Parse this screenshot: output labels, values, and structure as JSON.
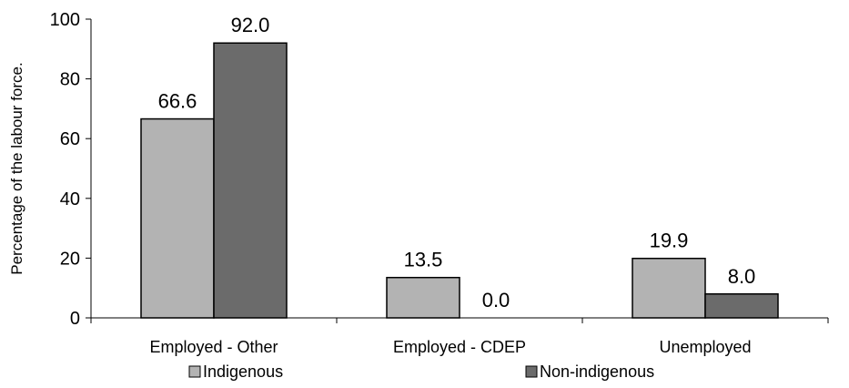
{
  "chart_data": {
    "type": "bar",
    "title": "",
    "xlabel": "",
    "ylabel": "Percentage of the labour force.",
    "ylim": [
      0,
      100
    ],
    "yticks": [
      0,
      20,
      40,
      60,
      80,
      100
    ],
    "grid": false,
    "legend_position": "bottom",
    "categories": [
      "Employed - Other",
      "Employed - CDEP",
      "Unemployed"
    ],
    "series": [
      {
        "name": "Indigenous",
        "values": [
          66.6,
          13.5,
          19.9
        ],
        "labels": [
          "66.6",
          "13.5",
          "19.9"
        ],
        "color": "#b3b3b3"
      },
      {
        "name": "Non-indigenous",
        "values": [
          92.0,
          0.0,
          8.0
        ],
        "labels": [
          "92.0",
          "0.0",
          "8.0"
        ],
        "color": "#6b6b6b"
      }
    ]
  }
}
